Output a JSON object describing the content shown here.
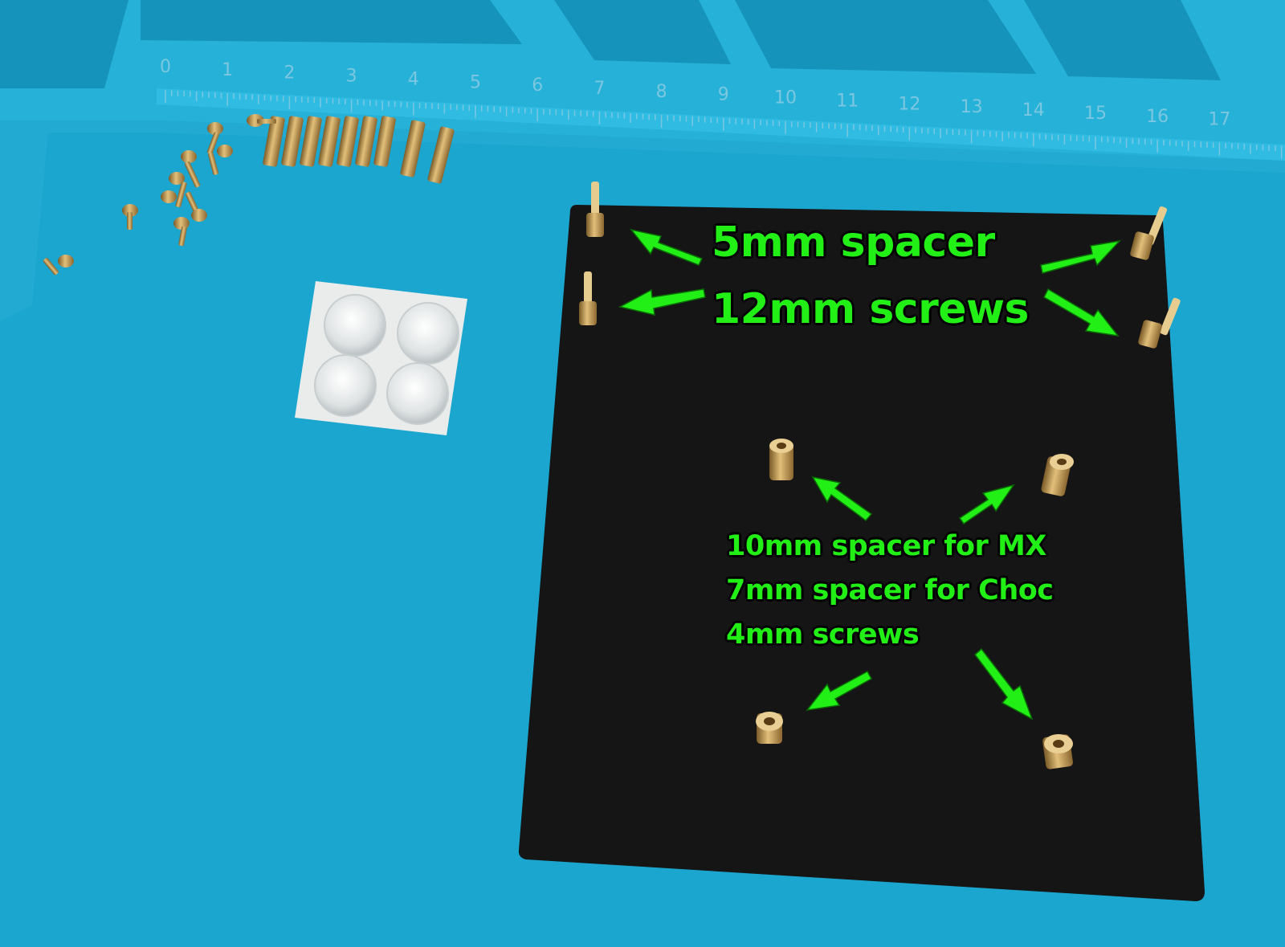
{
  "labels": {
    "top_line1": "5mm spacer",
    "top_line2": "12mm screws",
    "mid_line1": "10mm spacer for MX",
    "mid_line2": "7mm spacer for Choc",
    "mid_line3": "4mm screws"
  },
  "ruler": {
    "ticks": [
      "0",
      "1",
      "2",
      "3",
      "4",
      "5",
      "6",
      "7",
      "8",
      "9",
      "10",
      "11",
      "12",
      "13",
      "14",
      "15",
      "16",
      "17"
    ]
  },
  "colors": {
    "mat": "#1aa6cf",
    "mat_raised": "#2ab6dc",
    "plate": "#151515",
    "brass": "#c9a05a",
    "annotation": "#22ef16"
  }
}
